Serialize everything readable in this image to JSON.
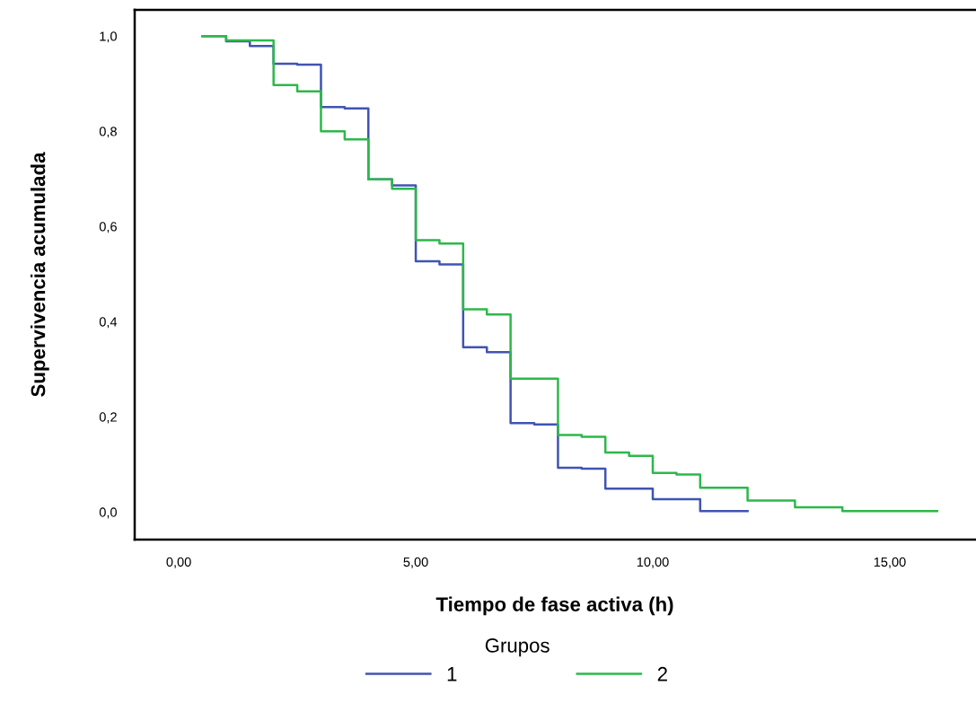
{
  "chart_data": {
    "type": "step",
    "xlabel": "Tiempo de fase activa (h)",
    "ylabel": "Supervivencia acumulada",
    "legend_title": "Grupos",
    "legend": "bottom",
    "grid": false,
    "xlim": [
      -0.93,
      16.8
    ],
    "ylim": [
      -0.058,
      1.055
    ],
    "xticks": [
      {
        "value": 0,
        "label": "0,00"
      },
      {
        "value": 5,
        "label": "5,00"
      },
      {
        "value": 10,
        "label": "10,00"
      },
      {
        "value": 15,
        "label": "15,00"
      }
    ],
    "yticks": [
      {
        "value": 0,
        "label": "0,0"
      },
      {
        "value": 0.2,
        "label": "0,2"
      },
      {
        "value": 0.4,
        "label": "0,4"
      },
      {
        "value": 0.6,
        "label": "0,6"
      },
      {
        "value": 0.8,
        "label": "0,8"
      },
      {
        "value": 1.0,
        "label": "1,0"
      }
    ],
    "series": [
      {
        "name": "1",
        "color": "#4054b2",
        "x": [
          0.5,
          1,
          1.5,
          2,
          2.5,
          3,
          3.5,
          4,
          4.5,
          5,
          5.5,
          6,
          6.5,
          7,
          7.5,
          8,
          8.5,
          9,
          9.5,
          10,
          10.5,
          11,
          12
        ],
        "values": [
          1.0,
          0.989,
          0.979,
          0.942,
          0.94,
          0.851,
          0.848,
          0.699,
          0.686,
          0.527,
          0.52,
          0.346,
          0.336,
          0.187,
          0.184,
          0.093,
          0.091,
          0.049,
          0.049,
          0.027,
          0.027,
          0.002,
          0.002
        ]
      },
      {
        "name": "2",
        "color": "#2db84a",
        "x": [
          0.5,
          1,
          1.5,
          2,
          2.5,
          3,
          3.5,
          4,
          4.5,
          5,
          5.5,
          6,
          6.5,
          7,
          7.5,
          8,
          8.5,
          9,
          9.5,
          10,
          10.5,
          11,
          12,
          13,
          14,
          16
        ],
        "values": [
          1.0,
          0.991,
          0.991,
          0.897,
          0.884,
          0.8,
          0.783,
          0.699,
          0.679,
          0.571,
          0.564,
          0.426,
          0.415,
          0.28,
          0.28,
          0.162,
          0.158,
          0.125,
          0.118,
          0.082,
          0.079,
          0.051,
          0.024,
          0.01,
          0.002,
          0.002
        ]
      }
    ]
  }
}
